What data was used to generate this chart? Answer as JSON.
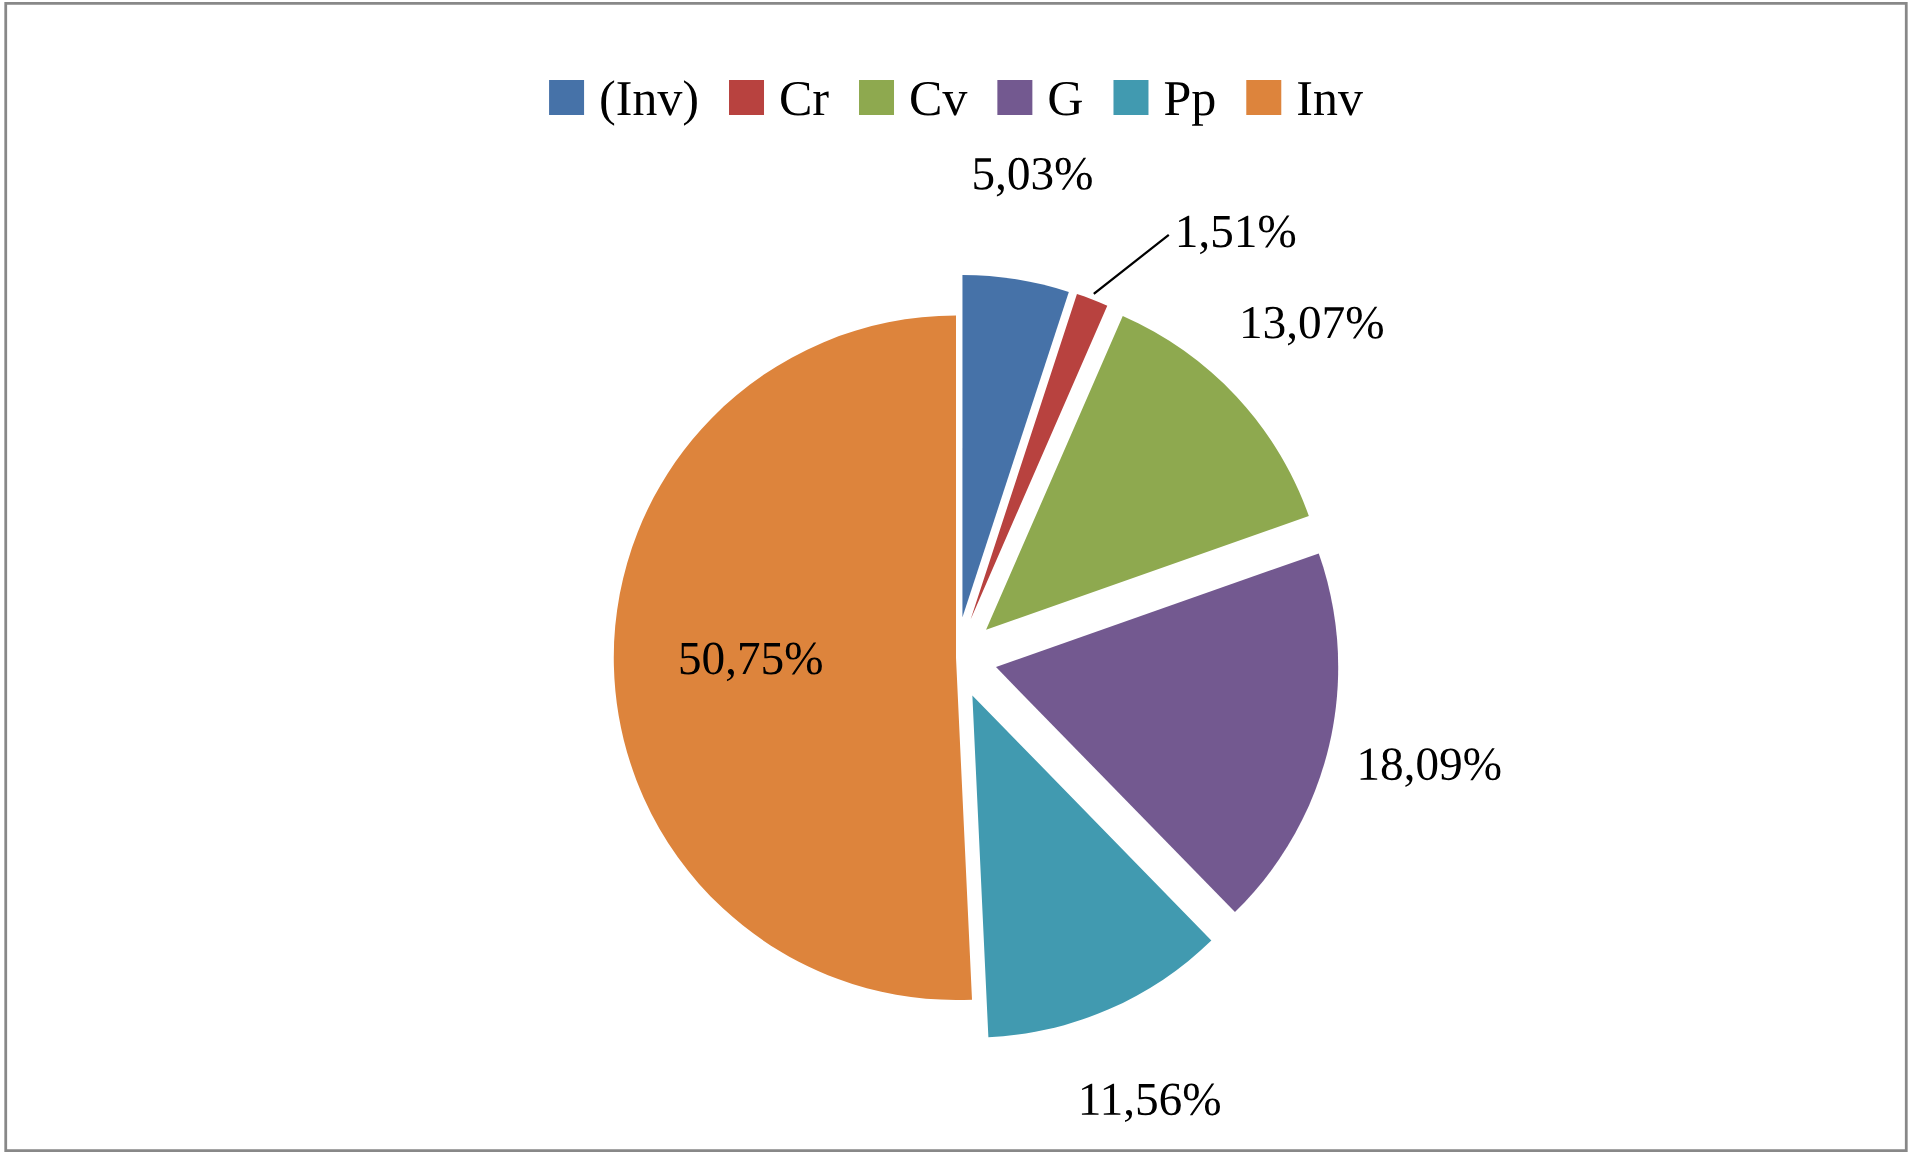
{
  "chart_data": {
    "type": "pie",
    "categories": [
      "(Inv)",
      "Cr",
      "Cv",
      "G",
      "Pp",
      "Inv"
    ],
    "values": [
      5.03,
      1.51,
      13.07,
      18.09,
      11.56,
      50.75
    ],
    "colors": [
      "#4672a8",
      "#b8423f",
      "#8ea94f",
      "#735990",
      "#419ab0",
      "#dd843c"
    ],
    "value_labels": [
      "5,03%",
      "1,51%",
      "13,07%",
      "18,09%",
      "11,56%",
      "50,75%"
    ],
    "legend": "top"
  }
}
